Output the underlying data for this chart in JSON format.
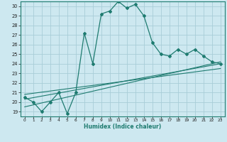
{
  "xlabel": "Humidex (Indice chaleur)",
  "background_color": "#cde8f0",
  "grid_color": "#a8cdd8",
  "line_color": "#1e7b70",
  "spine_color": "#1e7b70",
  "xlim": [
    -0.5,
    23.5
  ],
  "ylim": [
    18.5,
    30.5
  ],
  "x_ticks": [
    0,
    1,
    2,
    3,
    4,
    5,
    6,
    7,
    8,
    9,
    10,
    11,
    12,
    13,
    14,
    15,
    16,
    17,
    18,
    19,
    20,
    21,
    22,
    23
  ],
  "y_ticks": [
    19,
    20,
    21,
    22,
    23,
    24,
    25,
    26,
    27,
    28,
    29,
    30
  ],
  "main_x": [
    0,
    1,
    2,
    3,
    4,
    5,
    6,
    7,
    8,
    9,
    10,
    11,
    12,
    13,
    14,
    15,
    16,
    17,
    18,
    19,
    20,
    21,
    22,
    23
  ],
  "main_y": [
    20.5,
    20.0,
    19.0,
    20.0,
    21.0,
    18.8,
    21.0,
    27.2,
    24.0,
    29.2,
    29.5,
    30.5,
    29.8,
    30.2,
    29.0,
    26.2,
    25.0,
    24.8,
    25.5,
    25.0,
    25.5,
    24.8,
    24.2,
    24.0
  ],
  "line2_x": [
    0,
    23
  ],
  "line2_y": [
    19.5,
    24.2
  ],
  "line3_x": [
    0,
    23
  ],
  "line3_y": [
    20.3,
    24.0
  ],
  "line4_x": [
    0,
    23
  ],
  "line4_y": [
    20.8,
    23.5
  ]
}
